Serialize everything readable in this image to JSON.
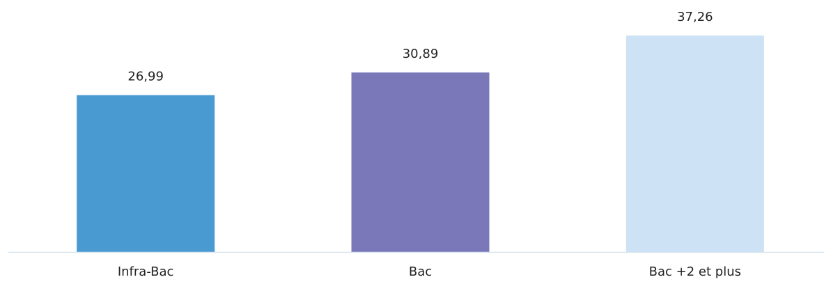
{
  "chart_data": {
    "type": "bar",
    "categories": [
      "Infra-Bac",
      "Bac",
      "Bac +2 et plus"
    ],
    "values": [
      26.99,
      30.89,
      37.26
    ],
    "value_labels": [
      "26,99",
      "30,89",
      "37,26"
    ],
    "colors": [
      "#4a9ad2",
      "#7a78b8",
      "#cde2f5"
    ]
  }
}
